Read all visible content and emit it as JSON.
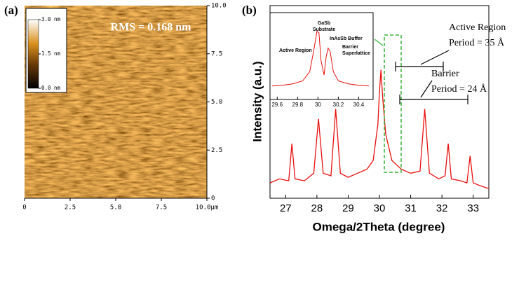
{
  "chart_data": [
    {
      "type": "heatmap",
      "label": "(a)",
      "annotation": "RMS = 0.168 nm",
      "xlim": [
        0,
        10
      ],
      "xticks": [
        0,
        2.5,
        {
          "value": 5,
          "label": "5.0"
        },
        7.5,
        {
          "value": 10,
          "label": "10.0μm"
        }
      ],
      "ylim": [
        0,
        10
      ],
      "yticks": [
        0,
        2.5,
        {
          "value": 5,
          "label": "5.0"
        },
        7.5,
        {
          "value": 10,
          "label": "10.0"
        }
      ],
      "clim": [
        0,
        3
      ],
      "cticks": [
        {
          "value": 3,
          "label": "3.0 nm"
        },
        {
          "value": 1.5,
          "label": "1.5 nm"
        },
        {
          "value": 0,
          "label": "0.0 nm"
        }
      ]
    },
    {
      "type": "line",
      "label": "(b)",
      "xlabel": "Omega/2Theta (degree)",
      "ylabel": "Intensity (a.u.)",
      "xlim": [
        26.5,
        33.5
      ],
      "xticks": [
        27,
        28,
        29,
        30,
        31,
        32,
        33
      ],
      "ylim": [
        10,
        10000000
      ],
      "log_y": true,
      "annotations": [
        "Active Region",
        "Period = 35 Å",
        "Barrier",
        "Period = 24 Å"
      ],
      "series": [
        {
          "color": "#e8100f",
          "x": [
            26.5,
            26.8,
            27.1,
            27.2,
            27.3,
            27.6,
            27.9,
            28.05,
            28.2,
            28.45,
            28.6,
            28.75,
            29.0,
            29.3,
            29.6,
            29.8,
            29.95,
            30.0,
            30.05,
            30.1,
            30.2,
            30.4,
            30.7,
            31.0,
            31.3,
            31.45,
            31.6,
            31.9,
            32.1,
            32.2,
            32.3,
            32.6,
            32.8,
            32.9,
            33.0,
            33.2,
            33.5
          ],
          "values": [
            30,
            40,
            35,
            500,
            40,
            35,
            60,
            3000,
            60,
            50,
            6000,
            60,
            45,
            60,
            80,
            150,
            2000,
            20000,
            100000,
            15000,
            1000,
            150,
            80,
            60,
            70,
            6000,
            60,
            40,
            50,
            500,
            40,
            35,
            30,
            210,
            30,
            25,
            20
          ]
        }
      ]
    },
    {
      "type": "line",
      "xlim": [
        29.55,
        30.5
      ],
      "xticks": [
        29.6,
        29.8,
        30,
        30.2,
        30.4
      ],
      "ylim": [
        0,
        100
      ],
      "annotations": [
        "Active Region",
        "GaSb",
        "Substrate",
        "InAsSb Buffer",
        "Barrier",
        "Superlattice"
      ],
      "series": [
        {
          "color": "#e8100f",
          "x": [
            29.55,
            29.65,
            29.75,
            29.85,
            29.92,
            29.96,
            29.99,
            30.01,
            30.03,
            30.06,
            30.08,
            30.1,
            30.12,
            30.15,
            30.2,
            30.3,
            30.4,
            30.5
          ],
          "values": [
            5,
            6,
            8,
            12,
            25,
            55,
            80,
            78,
            40,
            20,
            45,
            57,
            52,
            25,
            12,
            8,
            6,
            5
          ]
        }
      ]
    }
  ]
}
